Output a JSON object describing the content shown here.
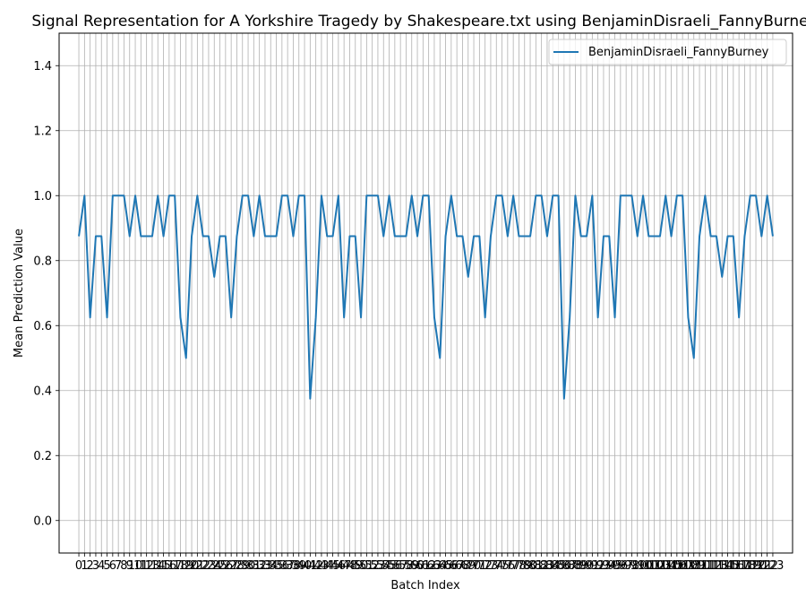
{
  "chart_data": {
    "type": "line",
    "title": "Signal Representation for A Yorkshire Tragedy by Shakespeare.txt using BenjaminDisraeli_FannyBurney",
    "xlabel": "Batch Index",
    "ylabel": "Mean Prediction Value",
    "xlim": [
      -3.5,
      126.5
    ],
    "ylim": [
      -0.1,
      1.5
    ],
    "yticks": [
      0.0,
      0.2,
      0.4,
      0.6,
      0.8,
      1.0,
      1.2,
      1.4
    ],
    "ytick_labels": [
      "0.0",
      "0.2",
      "0.4",
      "0.6",
      "0.8",
      "1.0",
      "1.2",
      "1.4"
    ],
    "grid": true,
    "legend_position": "upper right",
    "series": [
      {
        "name": "BenjaminDisraeli_FannyBurney",
        "color": "#1f77b4",
        "x": [
          0,
          1,
          2,
          3,
          4,
          5,
          6,
          7,
          8,
          9,
          10,
          11,
          12,
          13,
          14,
          15,
          16,
          17,
          18,
          19,
          20,
          21,
          22,
          23,
          24,
          25,
          26,
          27,
          28,
          29,
          30,
          31,
          32,
          33,
          34,
          35,
          36,
          37,
          38,
          39,
          40,
          41,
          42,
          43,
          44,
          45,
          46,
          47,
          48,
          49,
          50,
          51,
          52,
          53,
          54,
          55,
          56,
          57,
          58,
          59,
          60,
          61,
          62,
          63,
          64,
          65,
          66,
          67,
          68,
          69,
          70,
          71,
          72,
          73,
          74,
          75,
          76,
          77,
          78,
          79,
          80,
          81,
          82,
          83,
          84,
          85,
          86,
          87,
          88,
          89,
          90,
          91,
          92,
          93,
          94,
          95,
          96,
          97,
          98,
          99,
          100,
          101,
          102,
          103,
          104,
          105,
          106,
          107,
          108,
          109,
          110,
          111,
          112,
          113,
          114,
          115,
          116,
          117,
          118,
          119,
          120,
          121,
          122,
          123
        ],
        "values": [
          0.875,
          1.0,
          0.625,
          0.875,
          0.875,
          0.625,
          1.0,
          1.0,
          1.0,
          0.875,
          1.0,
          0.875,
          0.875,
          0.875,
          1.0,
          0.875,
          1.0,
          1.0,
          0.625,
          0.5,
          0.875,
          1.0,
          0.875,
          0.875,
          0.75,
          0.875,
          0.875,
          0.625,
          0.875,
          1.0,
          1.0,
          0.875,
          1.0,
          0.875,
          0.875,
          0.875,
          1.0,
          1.0,
          0.875,
          1.0,
          1.0,
          0.375,
          0.625,
          1.0,
          0.875,
          0.875,
          1.0,
          0.625,
          0.875,
          0.875,
          0.625,
          1.0,
          1.0,
          1.0,
          0.875,
          1.0,
          0.875,
          0.875,
          0.875,
          1.0,
          0.875,
          1.0,
          1.0,
          0.625,
          0.5,
          0.875,
          1.0,
          0.875,
          0.875,
          0.75,
          0.875,
          0.875,
          0.625,
          0.875,
          1.0,
          1.0,
          0.875,
          1.0,
          0.875,
          0.875,
          0.875,
          1.0,
          1.0,
          0.875,
          1.0,
          1.0,
          0.375,
          0.625,
          1.0,
          0.875,
          0.875,
          1.0,
          0.625,
          0.875,
          0.875,
          0.625,
          1.0,
          1.0,
          1.0,
          0.875,
          1.0,
          0.875,
          0.875,
          0.875,
          1.0,
          0.875,
          1.0,
          1.0,
          0.625,
          0.5,
          0.875,
          1.0,
          0.875,
          0.875,
          0.75,
          0.875,
          0.875,
          0.625,
          0.875,
          1.0,
          1.0,
          0.875,
          1.0,
          0.875
        ]
      }
    ],
    "xtick_labels": [
      "0",
      "1",
      "2",
      "3",
      "4",
      "5",
      "6",
      "7",
      "8",
      "9",
      "10",
      "11",
      "12",
      "13",
      "14",
      "15",
      "16",
      "17",
      "18",
      "19",
      "20",
      "21",
      "22",
      "23",
      "24",
      "25",
      "26",
      "27",
      "28",
      "29",
      "30",
      "31",
      "32",
      "33",
      "34",
      "35",
      "36",
      "37",
      "38",
      "39",
      "40",
      "41",
      "42",
      "43",
      "44",
      "45",
      "46",
      "47",
      "48",
      "49",
      "50",
      "51",
      "52",
      "53",
      "54",
      "55",
      "56",
      "57",
      "58",
      "59",
      "60",
      "61",
      "62",
      "63",
      "64",
      "65",
      "66",
      "67",
      "68",
      "69",
      "70",
      "71",
      "72",
      "73",
      "74",
      "75",
      "76",
      "77",
      "78",
      "79",
      "80",
      "81",
      "82",
      "83",
      "84",
      "85",
      "86",
      "87",
      "88",
      "89",
      "90",
      "91",
      "92",
      "93",
      "94",
      "95",
      "96",
      "97",
      "98",
      "99",
      "100",
      "101",
      "102",
      "103",
      "104",
      "105",
      "106",
      "107",
      "108",
      "109",
      "110",
      "111",
      "112",
      "113",
      "114",
      "115",
      "116",
      "117",
      "118",
      "119",
      "120",
      "121",
      "122",
      "123"
    ]
  }
}
